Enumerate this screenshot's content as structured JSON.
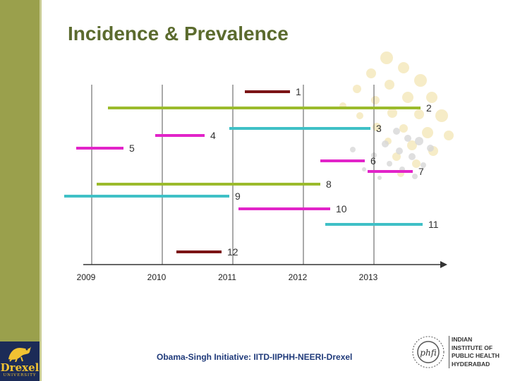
{
  "slide": {
    "title": "Incidence & Prevalence",
    "footer": "Obama-Singh Initiative: IITD-IIPHH-NEERI-Drexel"
  },
  "logos": {
    "drexel": {
      "word": "Drexel",
      "sub": "UNIVERSITY"
    },
    "iiphh": {
      "emblem_text": "phfi",
      "name_lines": [
        "INDIAN",
        "INSTITUTE OF",
        "PUBLIC HEALTH",
        "HYDERABAD"
      ]
    }
  },
  "colors": {
    "title": "#5b6b2e",
    "sidebar": "#9aa04c",
    "maroon": "#7b1416",
    "green": "#9bbb2c",
    "teal": "#3fc0c6",
    "magenta": "#e224c9",
    "axis": "#333333",
    "footer": "#1f3a7a"
  },
  "chart_data": {
    "type": "timeline",
    "years": [
      "2009",
      "2010",
      "2011",
      "2012",
      "2013"
    ],
    "x_range": [
      2008.78,
      2014.18
    ],
    "bars": [
      {
        "label": "1",
        "start": 2011.17,
        "end": 2011.81,
        "color": "maroon"
      },
      {
        "label": "2",
        "start": 2009.23,
        "end": 2013.66,
        "color": "green"
      },
      {
        "label": "3",
        "start": 2010.95,
        "end": 2012.95,
        "color": "teal"
      },
      {
        "label": "4",
        "start": 2009.9,
        "end": 2010.6,
        "color": "magenta"
      },
      {
        "label": "5",
        "start": 2008.78,
        "end": 2009.45,
        "color": "magenta"
      },
      {
        "label": "6",
        "start": 2012.24,
        "end": 2012.87,
        "color": "magenta"
      },
      {
        "label": "7",
        "start": 2012.91,
        "end": 2013.55,
        "color": "magenta"
      },
      {
        "label": "8",
        "start": 2009.07,
        "end": 2012.24,
        "color": "green"
      },
      {
        "label": "9",
        "start": 2008.61,
        "end": 2010.95,
        "color": "teal"
      },
      {
        "label": "10",
        "start": 2011.08,
        "end": 2012.38,
        "color": "magenta"
      },
      {
        "label": "11",
        "start": 2012.31,
        "end": 2013.69,
        "color": "teal"
      },
      {
        "label": "12",
        "start": 2010.2,
        "end": 2010.84,
        "color": "maroon"
      }
    ]
  }
}
